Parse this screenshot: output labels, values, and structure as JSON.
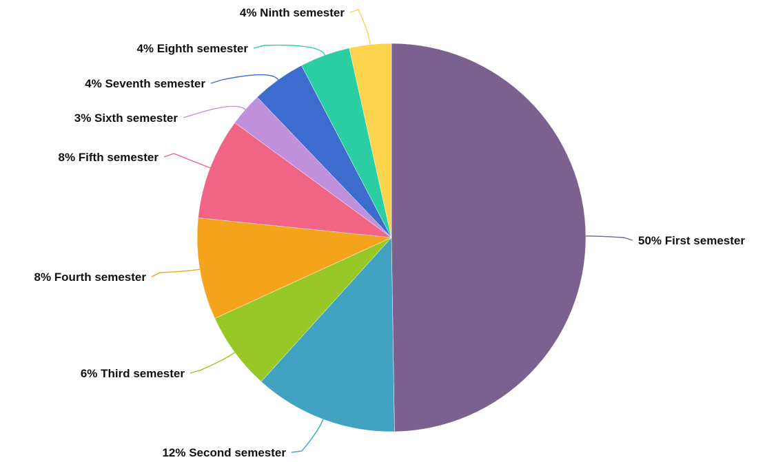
{
  "chart_data": {
    "type": "pie",
    "title": "",
    "slices": [
      {
        "label": "First semester",
        "percent_label": "50%",
        "value": 50,
        "color": "#7b6190"
      },
      {
        "label": "Second semester",
        "percent_label": "12%",
        "value": 12,
        "color": "#41a3c1"
      },
      {
        "label": "Third semester",
        "percent_label": "6%",
        "value": 6.5,
        "color": "#97c828"
      },
      {
        "label": "Fourth semester",
        "percent_label": "8%",
        "value": 8.5,
        "color": "#f4a41c"
      },
      {
        "label": "Fifth semester",
        "percent_label": "8%",
        "value": 8.5,
        "color": "#f06586"
      },
      {
        "label": "Sixth semester",
        "percent_label": "3%",
        "value": 2.8,
        "color": "#c090dd"
      },
      {
        "label": "Seventh semester",
        "percent_label": "4%",
        "value": 4.5,
        "color": "#3d6ccf"
      },
      {
        "label": "Eighth semester",
        "percent_label": "4%",
        "value": 4.2,
        "color": "#2ccfa3"
      },
      {
        "label": "Ninth semester",
        "percent_label": "4%",
        "value": 3.5,
        "color": "#fcd34d"
      }
    ],
    "legend": "none",
    "start_angle": "12 o'clock",
    "direction": "clockwise"
  }
}
